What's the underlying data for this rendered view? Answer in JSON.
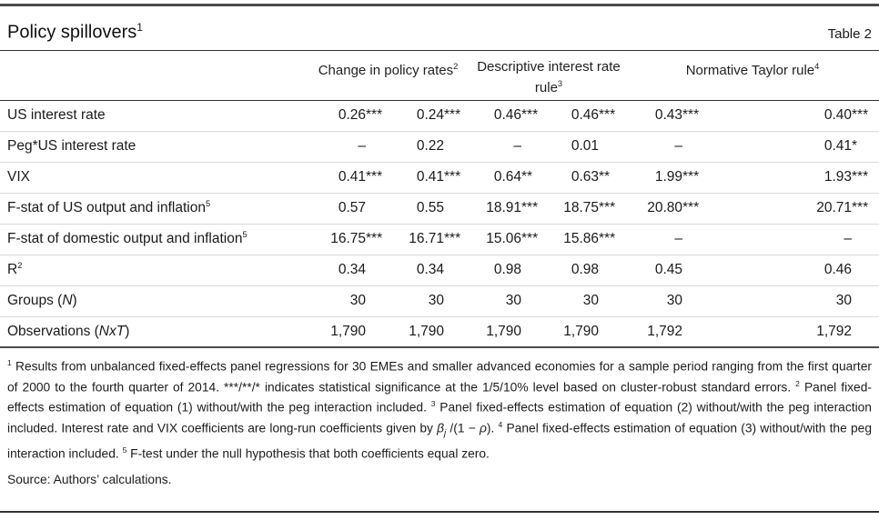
{
  "table": {
    "title_segments": [
      {
        "t": "Policy spillovers"
      },
      {
        "sup": "1"
      }
    ],
    "table_label": "Table 2",
    "col_groups": [
      {
        "segments": [
          {
            "t": "Change in policy rates"
          },
          {
            "sup": "2"
          }
        ]
      },
      {
        "segments": [
          {
            "t": "Descriptive interest rate"
          },
          {
            "br": 1
          },
          {
            "t": "rule"
          },
          {
            "sup": "3"
          }
        ]
      },
      {
        "segments": [
          {
            "t": "Normative Taylor rule"
          },
          {
            "sup": "4"
          }
        ]
      }
    ],
    "rows": [
      {
        "label": [
          {
            "t": "US interest rate"
          }
        ],
        "values": [
          "0.26***",
          "0.24***",
          "0.46***",
          "0.46***",
          "0.43***",
          "0.40***"
        ]
      },
      {
        "label": [
          {
            "t": "Peg*US interest rate"
          }
        ],
        "values": [
          "–",
          "0.22",
          "–",
          "0.01",
          "–",
          "0.41*"
        ]
      },
      {
        "label": [
          {
            "t": "VIX"
          }
        ],
        "values": [
          "0.41***",
          "0.41***",
          "0.64**",
          "0.63**",
          "1.99***",
          "1.93***"
        ]
      },
      {
        "label": [
          {
            "t": "F-stat of US output and inflation"
          },
          {
            "sup": "5"
          }
        ],
        "values": [
          "0.57",
          "0.55",
          "18.91***",
          "18.75***",
          "20.80***",
          "20.71***"
        ]
      },
      {
        "label": [
          {
            "t": "F-stat of domestic output and inflation"
          },
          {
            "sup": "5"
          }
        ],
        "values": [
          "16.75***",
          "16.71***",
          "15.06***",
          "15.86***",
          "–",
          "–"
        ]
      },
      {
        "label": [
          {
            "t": "R"
          },
          {
            "sup": "2"
          }
        ],
        "values": [
          "0.34",
          "0.34",
          "0.98",
          "0.98",
          "0.45",
          "0.46"
        ]
      },
      {
        "label": [
          {
            "t": "Groups ("
          },
          {
            "i": "N"
          },
          {
            "t": ")"
          }
        ],
        "values": [
          "30",
          "30",
          "30",
          "30",
          "30",
          "30"
        ]
      },
      {
        "label": [
          {
            "t": "Observations ("
          },
          {
            "i": "NxT"
          },
          {
            "t": ")"
          }
        ],
        "values": [
          "1,790",
          "1,790",
          "1,790",
          "1,790",
          "1,792",
          "1,792"
        ]
      }
    ]
  },
  "notes": {
    "footnote_segments": [
      {
        "sup": "1"
      },
      {
        "t": " Results from unbalanced fixed-effects panel regressions for 30 EMEs and smaller advanced economies for a sample period ranging from the first quarter of 2000 to the fourth quarter of 2014. ***/**/* indicates statistical significance at the 1/5/10% level based on cluster-robust standard errors.  "
      },
      {
        "sup": "2"
      },
      {
        "t": " Panel fixed-effects estimation of equation (1) without/with the peg interaction included.  "
      },
      {
        "sup": "3"
      },
      {
        "t": " Panel fixed-effects estimation of equation (2) without/with the peg interaction included. Interest rate and VIX coefficients are long-run coefficients given by "
      },
      {
        "i": "β"
      },
      {
        "sub": "j"
      },
      {
        "t": " /(1 − "
      },
      {
        "i": "ρ"
      },
      {
        "t": ").  "
      },
      {
        "sup": "4"
      },
      {
        "t": " Panel fixed-effects estimation of equation (3) without/with the peg interaction included.  "
      },
      {
        "sup": "5"
      },
      {
        "t": " F-test under the null hypothesis that both coefficients equal zero."
      }
    ],
    "source": "Source: Authors’ calculations."
  }
}
